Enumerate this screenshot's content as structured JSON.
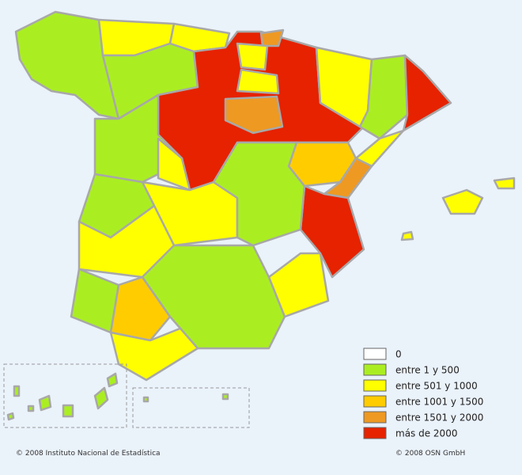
{
  "legend": [
    {
      "label": "0",
      "color": "#ffffff"
    },
    {
      "label": "entre 1 y 500",
      "color": "#aaee22"
    },
    {
      "label": "entre 501 y 1000",
      "color": "#ffff00"
    },
    {
      "label": "entre 1001 y 1500",
      "color": "#ffcc00"
    },
    {
      "label": "entre 1501 y 2000",
      "color": "#ee9922"
    },
    {
      "label": "más de 2000",
      "color": "#e62200"
    }
  ],
  "footer": {
    "left": "© 2008 Instituto Nacional de Estadística",
    "right": "© 2008 OSN GmbH"
  }
}
